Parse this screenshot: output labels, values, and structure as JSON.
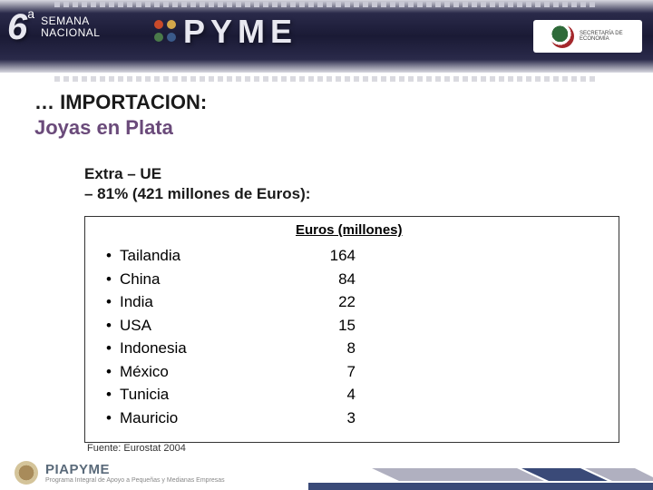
{
  "header": {
    "event_number": "6",
    "event_sup": "a",
    "event_line1": "SEMANA",
    "event_line2": "NACIONAL",
    "pyme": "PYME",
    "right_logo_text": "SECRETARÍA DE ECONOMÍA"
  },
  "title": {
    "line1": "… IMPORTACION:",
    "line2": "Joyas en Plata"
  },
  "subheading": {
    "label": "Extra – UE",
    "detail": "–  81% (421 millones de Euros):"
  },
  "table": {
    "column_header": "Euros (millones)",
    "rows": [
      {
        "country": "Tailandia",
        "value": "164"
      },
      {
        "country": "China",
        "value": "84"
      },
      {
        "country": "India",
        "value": "22"
      },
      {
        "country": "USA",
        "value": "15"
      },
      {
        "country": "Indonesia",
        "value": "8"
      },
      {
        "country": "México",
        "value": "7"
      },
      {
        "country": "Tunicia",
        "value": "4"
      },
      {
        "country": "Mauricio",
        "value": "3"
      }
    ]
  },
  "source": "Fuente: Eurostat 2004",
  "footer": {
    "program": "PIAPYME",
    "program_sub": "Programa Integral de Apoyo a Pequeñas y Medianas Empresas"
  },
  "colors": {
    "title_accent": "#6a4a7a",
    "header_dark": "#1a1a35",
    "box_border": "#333333",
    "footer_chevron_a": "#3a4a78",
    "footer_chevron_b": "#b0b0c0"
  }
}
